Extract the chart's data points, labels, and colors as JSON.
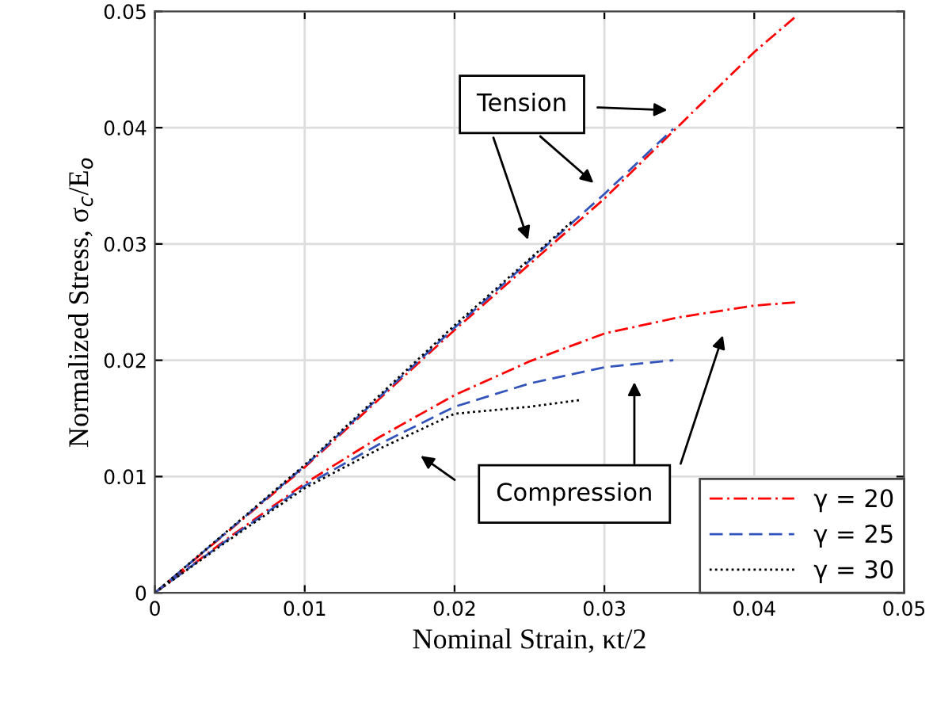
{
  "chart_data": {
    "type": "line",
    "xlabel": "Nominal Strain, κt/2",
    "ylabel": "Normalized Stress, σ$_{c}$/E$_{o}$",
    "xlim": [
      0,
      0.05
    ],
    "ylim": [
      0,
      0.05
    ],
    "xticks": [
      0,
      0.01,
      0.02,
      0.03,
      0.04,
      0.05
    ],
    "yticks": [
      0,
      0.01,
      0.02,
      0.03,
      0.04,
      0.05
    ],
    "grid": true,
    "legend": "bottom right",
    "annotations": [
      "Tension",
      "Compression"
    ],
    "series": [
      {
        "name": "γ = 20",
        "color": "#ff0000",
        "line_style": "dashdot",
        "x": [
          0,
          0.005,
          0.01,
          0.015,
          0.02,
          0.025,
          0.03,
          0.035,
          0.04,
          0.0429
        ],
        "values": [
          0,
          0.0048,
          0.0094,
          0.0134,
          0.017,
          0.0199,
          0.0223,
          0.0237,
          0.0247,
          0.025
        ]
      },
      {
        "name": "γ = 25",
        "color": "#3355bb",
        "line_style": "dashed",
        "x": [
          0,
          0.005,
          0.01,
          0.015,
          0.02,
          0.025,
          0.03,
          0.0346
        ],
        "values": [
          0,
          0.0047,
          0.0092,
          0.0128,
          0.016,
          0.018,
          0.0194,
          0.02
        ]
      },
      {
        "name": "γ = 30",
        "color": "#000000",
        "line_style": "dotted",
        "x": [
          0,
          0.005,
          0.01,
          0.015,
          0.02,
          0.025,
          0.0285
        ],
        "values": [
          0,
          0.0046,
          0.009,
          0.0124,
          0.0154,
          0.016,
          0.0166
        ]
      },
      {
        "color": "#ff0000",
        "line_style": "dashdot",
        "x": [
          0,
          0.01,
          0.02,
          0.03,
          0.04,
          0.0429
        ],
        "values": [
          0,
          0.0108,
          0.0226,
          0.0339,
          0.0465,
          0.0497
        ]
      },
      {
        "color": "#3355bb",
        "line_style": "dashed",
        "x": [
          0,
          0.01,
          0.02,
          0.03,
          0.0346
        ],
        "values": [
          0,
          0.0109,
          0.0228,
          0.0343,
          0.0399
        ]
      },
      {
        "color": "#000000",
        "line_style": "dotted",
        "x": [
          0,
          0.01,
          0.02,
          0.0279
        ],
        "values": [
          0,
          0.011,
          0.023,
          0.032
        ]
      }
    ]
  }
}
